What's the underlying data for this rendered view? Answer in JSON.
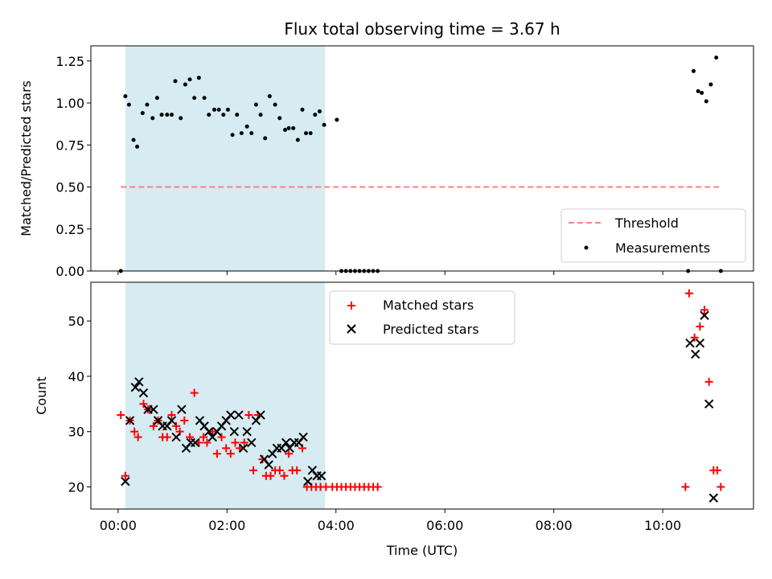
{
  "figure": {
    "title": "Flux total observing time = 3.67 h"
  },
  "colors": {
    "shade": "#add8e6",
    "threshold": "#ff7f7f",
    "measurement": "#000000",
    "matched": "#ff0000",
    "predicted": "#000000"
  },
  "chart_data": [
    {
      "type": "scatter",
      "title": "Flux total observing time = 3.67 h",
      "xlabel": "",
      "ylabel": "Matched/Predicted stars",
      "x_unit": "minutes since 00:00 UTC",
      "xlim": [
        -30,
        700
      ],
      "ylim": [
        0,
        1.34
      ],
      "yticks": [
        0.0,
        0.25,
        0.5,
        0.75,
        1.0,
        1.25
      ],
      "ytick_labels": [
        "0.00",
        "0.25",
        "0.50",
        "0.75",
        "1.00",
        "1.25"
      ],
      "shaded_span": [
        8,
        228
      ],
      "threshold": {
        "name": "Threshold",
        "value": 0.5,
        "x_range": [
          3,
          665
        ]
      },
      "legend": {
        "position": "lower-right",
        "entries": [
          "Threshold",
          "Measurements"
        ]
      },
      "series": [
        {
          "name": "Measurements",
          "marker": "dot",
          "x": [
            3,
            8,
            12,
            17,
            21,
            27,
            32,
            38,
            43,
            48,
            54,
            59,
            63,
            69,
            74,
            79,
            84,
            89,
            95,
            100,
            106,
            111,
            116,
            121,
            126,
            131,
            136,
            142,
            147,
            152,
            157,
            162,
            167,
            173,
            178,
            184,
            188,
            193,
            198,
            203,
            207,
            212,
            217,
            222,
            227,
            241,
            246,
            251,
            256,
            261,
            266,
            271,
            276,
            281,
            286,
            628,
            634,
            639,
            643,
            648,
            653,
            659,
            664
          ],
          "y": [
            0.0,
            1.04,
            0.99,
            0.78,
            0.74,
            0.94,
            0.99,
            0.91,
            1.03,
            0.93,
            0.93,
            0.93,
            1.13,
            0.91,
            1.11,
            1.14,
            1.03,
            1.15,
            1.03,
            0.93,
            0.96,
            0.96,
            0.93,
            0.96,
            0.81,
            0.93,
            0.82,
            0.86,
            0.82,
            0.99,
            0.93,
            0.79,
            1.04,
            0.99,
            0.91,
            0.84,
            0.85,
            0.85,
            0.78,
            0.96,
            0.82,
            0.82,
            0.93,
            0.95,
            0.87,
            0.9,
            0.0,
            0.0,
            0.0,
            0.0,
            0.0,
            0.0,
            0.0,
            0.0,
            0.0,
            0.0,
            1.19,
            1.07,
            1.06,
            1.01,
            1.11,
            1.27,
            0.0
          ]
        }
      ]
    },
    {
      "type": "scatter",
      "xlabel": "Time (UTC)",
      "ylabel": "Count",
      "x_unit": "minutes since 00:00 UTC",
      "xlim": [
        -30,
        700
      ],
      "ylim": [
        16,
        57
      ],
      "yticks": [
        20,
        30,
        40,
        50
      ],
      "ytick_labels": [
        "20",
        "30",
        "40",
        "50"
      ],
      "xticks": [
        0,
        120,
        240,
        360,
        480,
        600
      ],
      "xtick_labels": [
        "00:00",
        "02:00",
        "04:00",
        "06:00",
        "08:00",
        "10:00"
      ],
      "shaded_span": [
        8,
        228
      ],
      "legend": {
        "position": "top-center",
        "entries": [
          "Matched stars",
          "Predicted stars"
        ]
      },
      "series": [
        {
          "name": "Matched stars",
          "marker": "plus",
          "x": [
            3,
            8,
            13,
            18,
            22,
            28,
            33,
            39,
            44,
            49,
            54,
            59,
            64,
            68,
            73,
            79,
            84,
            89,
            94,
            98,
            104,
            109,
            114,
            119,
            124,
            129,
            134,
            139,
            144,
            149,
            154,
            159,
            163,
            168,
            173,
            178,
            183,
            188,
            192,
            197,
            203,
            208,
            213,
            218,
            223,
            229,
            236,
            241,
            246,
            251,
            256,
            261,
            266,
            271,
            276,
            281,
            286,
            625,
            629,
            635,
            641,
            646,
            651,
            656,
            660,
            664
          ],
          "y": [
            33,
            22,
            32,
            30,
            29,
            35,
            34,
            31,
            32,
            29,
            29,
            33,
            31,
            30,
            32,
            29,
            37,
            28,
            29,
            28,
            30,
            26,
            29,
            27,
            26,
            28,
            27,
            28,
            33,
            23,
            33,
            25,
            22,
            22,
            23,
            23,
            22,
            26,
            23,
            23,
            27,
            20,
            20,
            20,
            20,
            20,
            20,
            20,
            20,
            20,
            20,
            20,
            20,
            20,
            20,
            20,
            20,
            20,
            55,
            47,
            49,
            52,
            39,
            23,
            23,
            20
          ]
        },
        {
          "name": "Predicted stars",
          "marker": "x",
          "x": [
            8,
            13,
            19,
            23,
            28,
            33,
            39,
            44,
            49,
            54,
            59,
            64,
            70,
            75,
            80,
            85,
            90,
            95,
            100,
            104,
            109,
            114,
            119,
            124,
            128,
            133,
            138,
            142,
            147,
            152,
            157,
            161,
            166,
            170,
            175,
            180,
            185,
            189,
            194,
            199,
            204,
            209,
            214,
            219,
            224,
            630,
            636,
            641,
            646,
            651,
            656
          ],
          "y": [
            21,
            32,
            38,
            39,
            37,
            34,
            34,
            32,
            31,
            31,
            32,
            29,
            34,
            27,
            28,
            28,
            32,
            31,
            30,
            29,
            30,
            31,
            32,
            33,
            30,
            33,
            27,
            30,
            28,
            32,
            33,
            25,
            24,
            26,
            27,
            27,
            28,
            27,
            28,
            28,
            29,
            21,
            23,
            22,
            22,
            46,
            44,
            46,
            51,
            35,
            18
          ]
        }
      ]
    }
  ]
}
